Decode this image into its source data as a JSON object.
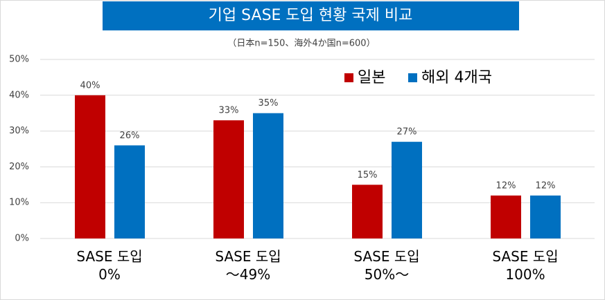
{
  "chart_data": {
    "type": "bar",
    "title": "기업 SASE 도입 현황 국제 비교",
    "subtitle": "（日本n=150、海外4か国n=600）",
    "categories": [
      "SASE 도입\n0%",
      "SASE 도입\n～49%",
      "SASE 도입\n50%～",
      "SASE 도입\n100%"
    ],
    "series": [
      {
        "name": "일본",
        "color": "#c00000",
        "values": [
          40,
          33,
          15,
          12
        ],
        "value_labels": [
          "40%",
          "33%",
          "15%",
          "12%"
        ]
      },
      {
        "name": "해외 4개국",
        "color": "#0070c0",
        "values": [
          26,
          35,
          27,
          12
        ],
        "value_labels": [
          "26%",
          "35%",
          "27%",
          "12%"
        ]
      }
    ],
    "ylim": [
      0,
      50
    ],
    "yticks": [
      {
        "value": 0,
        "label": "0%"
      },
      {
        "value": 10,
        "label": "10%"
      },
      {
        "value": 20,
        "label": "20%"
      },
      {
        "value": 30,
        "label": "30%"
      },
      {
        "value": 40,
        "label": "40%"
      },
      {
        "value": 50,
        "label": "50%"
      }
    ],
    "grid": true
  }
}
